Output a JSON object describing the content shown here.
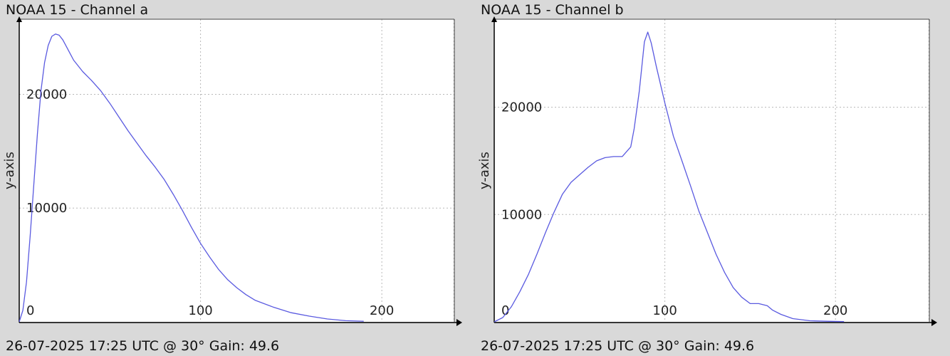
{
  "chart_data": [
    {
      "type": "line",
      "title": "NOAA 15 - Channel a",
      "footer": "26-07-2025 17:25 UTC @ 30° Gain: 49.6",
      "xlabel": "",
      "ylabel": "y-axis",
      "xlim": [
        0,
        240
      ],
      "ylim": [
        0,
        26600
      ],
      "xticks": [
        0,
        100,
        200
      ],
      "yticks": [
        10000,
        20000
      ],
      "grid": true,
      "line_color": "#5a5ae0",
      "series": [
        {
          "x": [
            0,
            2,
            4,
            6,
            8,
            10,
            12,
            14,
            16,
            18,
            20,
            22,
            24,
            26,
            28,
            30,
            35,
            40,
            45,
            50,
            55,
            60,
            65,
            70,
            75,
            80,
            85,
            90,
            95,
            100,
            105,
            110,
            115,
            120,
            125,
            130,
            140,
            150,
            160,
            170,
            180,
            190
          ],
          "y": [
            0,
            1000,
            3500,
            7500,
            12000,
            16500,
            20300,
            22800,
            24300,
            25100,
            25300,
            25200,
            24800,
            24200,
            23600,
            23000,
            22000,
            21200,
            20300,
            19200,
            18000,
            16800,
            15700,
            14600,
            13600,
            12500,
            11200,
            9800,
            8300,
            6900,
            5700,
            4600,
            3700,
            3000,
            2400,
            1900,
            1300,
            800,
            500,
            250,
            100,
            50
          ]
        }
      ]
    },
    {
      "type": "line",
      "title": "NOAA 15 - Channel b",
      "footer": "26-07-2025 17:25 UTC @ 30° Gain: 49.6",
      "xlabel": "",
      "ylabel": "y-axis",
      "xlim": [
        0,
        255
      ],
      "ylim": [
        0,
        28200
      ],
      "xticks": [
        0,
        100,
        200
      ],
      "yticks": [
        10000,
        20000
      ],
      "grid": true,
      "line_color": "#5a5ae0",
      "series": [
        {
          "x": [
            0,
            5,
            10,
            15,
            20,
            25,
            30,
            35,
            40,
            45,
            50,
            55,
            60,
            65,
            70,
            75,
            80,
            82,
            85,
            88,
            90,
            92,
            95,
            100,
            105,
            110,
            115,
            120,
            125,
            130,
            135,
            140,
            145,
            150,
            155,
            160,
            163,
            168,
            175,
            185,
            195,
            205
          ],
          "y": [
            0,
            400,
            1400,
            2800,
            4400,
            6300,
            8300,
            10200,
            11900,
            13000,
            13700,
            14400,
            15000,
            15300,
            15400,
            15400,
            16300,
            18000,
            21500,
            26100,
            27000,
            26000,
            23800,
            20400,
            17300,
            15000,
            12700,
            10300,
            8300,
            6300,
            4600,
            3200,
            2300,
            1700,
            1700,
            1500,
            1100,
            700,
            300,
            100,
            50,
            20
          ]
        }
      ]
    }
  ]
}
